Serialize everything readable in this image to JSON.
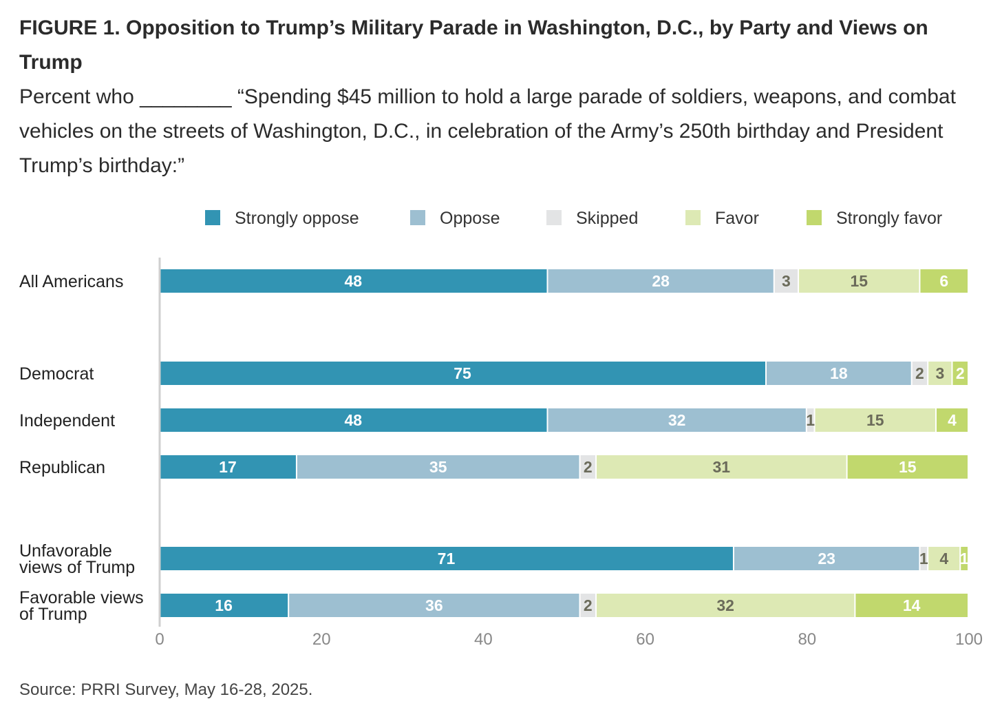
{
  "title": "FIGURE 1.  Opposition to Trump’s Military Parade in Washington, D.C., by Party and Views on Trump",
  "subtitle": "Percent who ________ “Spending $45 million to hold a large parade of soldiers, weapons, and combat vehicles on the streets of Washington, D.C., in celebration of the Army’s 250th birthday and President Trump’s birthday:”",
  "source": "Source: PRRI Survey, May 16-28, 2025.",
  "colors": {
    "strongly_oppose": "#3294b3",
    "oppose": "#9dbfd1",
    "skipped": "#e3e4e5",
    "favor": "#dde9b4",
    "strongly_favor": "#c1d86d",
    "label_light": "#ffffff",
    "label_dark": "#6b6b5a"
  },
  "chart_data": {
    "type": "bar",
    "orientation": "horizontal",
    "stacked": true,
    "categories": [
      "All Americans",
      "Democrat",
      "Independent",
      "Republican",
      "Unfavorable views of Trump",
      "Favorable views of Trump"
    ],
    "series": [
      {
        "name": "Strongly oppose",
        "values": [
          48,
          75,
          48,
          17,
          71,
          16
        ]
      },
      {
        "name": "Oppose",
        "values": [
          28,
          18,
          32,
          35,
          23,
          36
        ]
      },
      {
        "name": "Skipped",
        "values": [
          3,
          2,
          1,
          2,
          1,
          2
        ]
      },
      {
        "name": "Favor",
        "values": [
          15,
          3,
          15,
          31,
          4,
          32
        ]
      },
      {
        "name": "Strongly favor",
        "values": [
          6,
          2,
          4,
          15,
          1,
          14
        ]
      }
    ],
    "xlim": [
      0,
      100
    ],
    "xticks": [
      0,
      20,
      40,
      60,
      80,
      100
    ],
    "legend_position": "top-right",
    "grid": false
  }
}
